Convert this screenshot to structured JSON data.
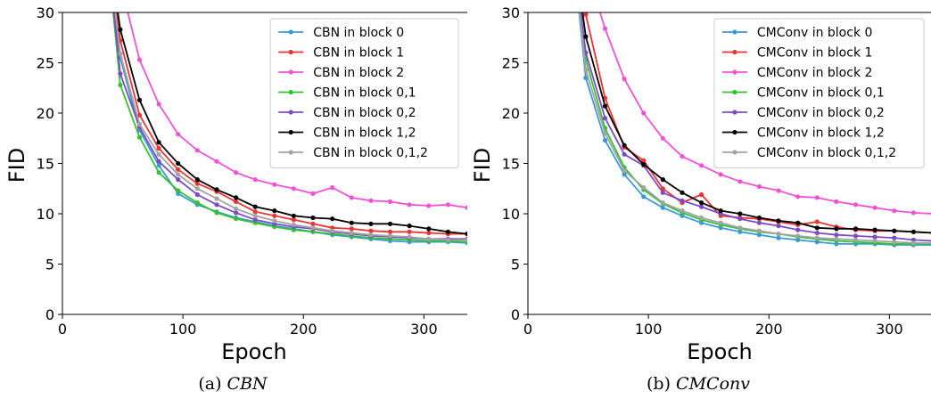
{
  "chart_data": [
    {
      "type": "line",
      "caption": {
        "label": "(a)",
        "title": "CBN"
      },
      "xlabel": "Epoch",
      "ylabel": "FID",
      "xlim": [
        0,
        336
      ],
      "ylim": [
        0,
        30
      ],
      "xticks": [
        0,
        100,
        200,
        300
      ],
      "yticks": [
        0,
        5,
        10,
        15,
        20,
        25,
        30
      ],
      "legend_position": "top-right",
      "x": [
        48,
        64,
        80,
        96,
        112,
        128,
        144,
        160,
        176,
        192,
        208,
        224,
        240,
        256,
        272,
        288,
        304,
        320,
        336
      ],
      "series": [
        {
          "name": "CBN in block 0",
          "color": "#3a9ad9",
          "values": [
            25.5,
            18.3,
            14.8,
            12.0,
            10.9,
            10.2,
            9.6,
            9.2,
            8.8,
            8.5,
            8.2,
            7.9,
            7.7,
            7.5,
            7.3,
            7.2,
            7.2,
            7.2,
            7.1
          ]
        },
        {
          "name": "CBN in block 1",
          "color": "#ee3333",
          "values": [
            27.2,
            19.8,
            16.5,
            14.4,
            13.0,
            12.2,
            11.2,
            10.2,
            9.8,
            9.4,
            9.0,
            8.6,
            8.5,
            8.3,
            8.2,
            8.2,
            8.1,
            8.0,
            8.0
          ]
        },
        {
          "name": "CBN in block 2",
          "color": "#f052d6",
          "values": [
            33.0,
            25.3,
            20.9,
            17.9,
            16.3,
            15.2,
            14.1,
            13.4,
            12.9,
            12.5,
            12.0,
            12.6,
            11.6,
            11.3,
            11.2,
            10.9,
            10.8,
            10.9,
            10.6
          ]
        },
        {
          "name": "CBN in block 0,1",
          "color": "#33c133",
          "values": [
            22.8,
            17.6,
            14.1,
            12.3,
            11.1,
            10.1,
            9.5,
            9.1,
            8.7,
            8.4,
            8.2,
            8.0,
            7.8,
            7.6,
            7.5,
            7.4,
            7.3,
            7.3,
            7.2
          ]
        },
        {
          "name": "CBN in block 0,2",
          "color": "#7d4bc2",
          "values": [
            23.9,
            18.6,
            15.2,
            13.4,
            11.9,
            10.9,
            10.1,
            9.4,
            9.0,
            8.7,
            8.5,
            8.2,
            8.0,
            7.8,
            7.7,
            7.6,
            7.5,
            7.5,
            7.5
          ]
        },
        {
          "name": "CBN in block 1,2",
          "color": "#000000",
          "values": [
            28.3,
            21.3,
            17.1,
            15.0,
            13.4,
            12.4,
            11.6,
            10.7,
            10.3,
            9.8,
            9.6,
            9.5,
            9.1,
            9.0,
            9.0,
            8.8,
            8.5,
            8.2,
            8.0
          ]
        },
        {
          "name": "CBN in block 0,1,2",
          "color": "#a3a3a3",
          "values": [
            25.9,
            18.9,
            15.9,
            13.9,
            12.5,
            11.5,
            10.5,
            9.8,
            9.3,
            8.9,
            8.6,
            8.3,
            8.1,
            7.9,
            7.8,
            7.7,
            7.5,
            7.4,
            7.4
          ]
        }
      ]
    },
    {
      "type": "line",
      "caption": {
        "label": "(b)",
        "title": "CMConv"
      },
      "xlabel": "Epoch",
      "ylabel": "FID",
      "xlim": [
        0,
        336
      ],
      "ylim": [
        0,
        30
      ],
      "xticks": [
        0,
        100,
        200,
        300
      ],
      "yticks": [
        0,
        5,
        10,
        15,
        20,
        25,
        30
      ],
      "legend_position": "top-right",
      "x": [
        48,
        64,
        80,
        96,
        112,
        128,
        144,
        160,
        176,
        192,
        208,
        224,
        240,
        256,
        272,
        288,
        304,
        320,
        336
      ],
      "series": [
        {
          "name": "CMConv in block 0",
          "color": "#3a9ad9",
          "values": [
            23.5,
            17.3,
            13.9,
            11.7,
            10.6,
            9.8,
            9.1,
            8.6,
            8.2,
            7.9,
            7.6,
            7.4,
            7.2,
            7.0,
            7.0,
            7.0,
            6.9,
            6.9,
            6.9
          ]
        },
        {
          "name": "CMConv in block 1",
          "color": "#ee3333",
          "values": [
            29.8,
            21.5,
            16.6,
            15.3,
            12.5,
            11.1,
            11.9,
            9.8,
            9.6,
            9.5,
            9.2,
            8.9,
            9.2,
            8.7,
            8.4,
            8.3,
            8.3,
            8.2,
            8.1
          ]
        },
        {
          "name": "CMConv in block 2",
          "color": "#f052d6",
          "values": [
            34.5,
            28.4,
            23.4,
            20.0,
            17.5,
            15.7,
            14.8,
            13.9,
            13.2,
            12.7,
            12.3,
            11.7,
            11.6,
            11.2,
            10.9,
            10.6,
            10.3,
            10.1,
            10.0
          ]
        },
        {
          "name": "CMConv in block 0,1",
          "color": "#33c133",
          "values": [
            25.3,
            18.5,
            14.6,
            12.4,
            11.0,
            10.1,
            9.4,
            8.9,
            8.5,
            8.2,
            8.0,
            7.7,
            7.5,
            7.3,
            7.2,
            7.1,
            7.0,
            7.0,
            7.0
          ]
        },
        {
          "name": "CMConv in block 0,2",
          "color": "#7d4bc2",
          "values": [
            26.0,
            19.5,
            15.9,
            14.8,
            12.1,
            11.3,
            10.7,
            10.0,
            9.5,
            9.1,
            8.8,
            8.4,
            8.1,
            7.9,
            7.8,
            7.7,
            7.6,
            7.4,
            7.3
          ]
        },
        {
          "name": "CMConv in block 1,2",
          "color": "#000000",
          "values": [
            27.6,
            20.7,
            16.8,
            14.9,
            13.4,
            12.1,
            11.1,
            10.3,
            10.0,
            9.6,
            9.3,
            9.1,
            8.6,
            8.5,
            8.5,
            8.4,
            8.3,
            8.2,
            8.1
          ]
        },
        {
          "name": "CMConv in block 0,1,2",
          "color": "#a3a3a3",
          "values": [
            24.3,
            18.0,
            14.3,
            12.6,
            11.1,
            10.3,
            9.6,
            9.1,
            8.6,
            8.3,
            8.0,
            7.8,
            7.6,
            7.5,
            7.4,
            7.3,
            7.2,
            7.1,
            7.1
          ]
        }
      ]
    }
  ]
}
